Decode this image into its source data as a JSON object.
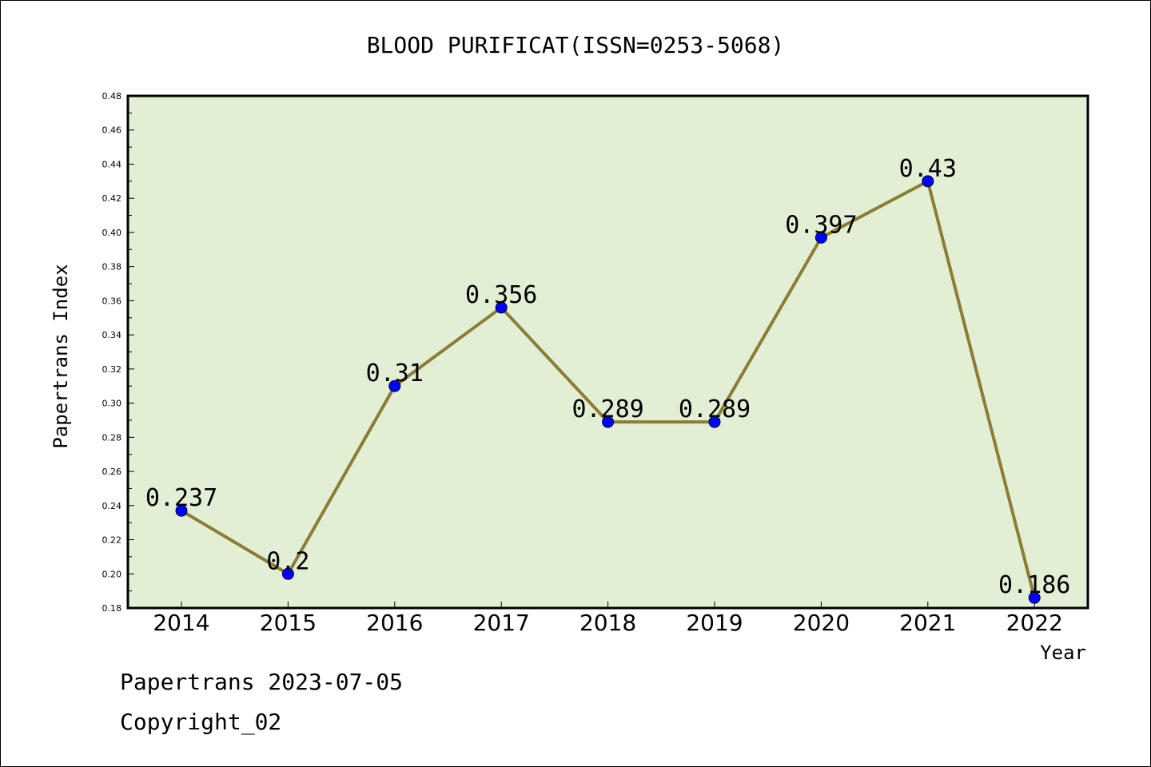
{
  "chart_data": {
    "type": "line",
    "title": "BLOOD PURIFICAT(ISSN=0253-5068)",
    "xlabel": "Year",
    "ylabel": "Papertrans Index",
    "categories": [
      "2014",
      "2015",
      "2016",
      "2017",
      "2018",
      "2019",
      "2020",
      "2021",
      "2022"
    ],
    "series": [
      {
        "values": [
          0.237,
          0.2,
          0.31,
          0.356,
          0.289,
          0.289,
          0.397,
          0.43,
          0.186
        ]
      }
    ],
    "data_labels": [
      "0.237",
      "0.2",
      "0.31",
      "0.356",
      "0.289",
      "0.289",
      "0.397",
      "0.43",
      "0.186"
    ],
    "ylim": [
      0.18,
      0.48
    ],
    "yticks": [
      "0.18",
      "0.20",
      "0.22",
      "0.24",
      "0.26",
      "0.28",
      "0.30",
      "0.32",
      "0.34",
      "0.36",
      "0.38",
      "0.40",
      "0.42",
      "0.44",
      "0.46",
      "0.48"
    ],
    "grid": false,
    "plot_background": "#e2efd5",
    "line_color": "#8b7d35",
    "marker_color": "#0000ff"
  },
  "footer": {
    "date_line": "Papertrans 2023-07-05",
    "copyright": "Copyright_02"
  }
}
